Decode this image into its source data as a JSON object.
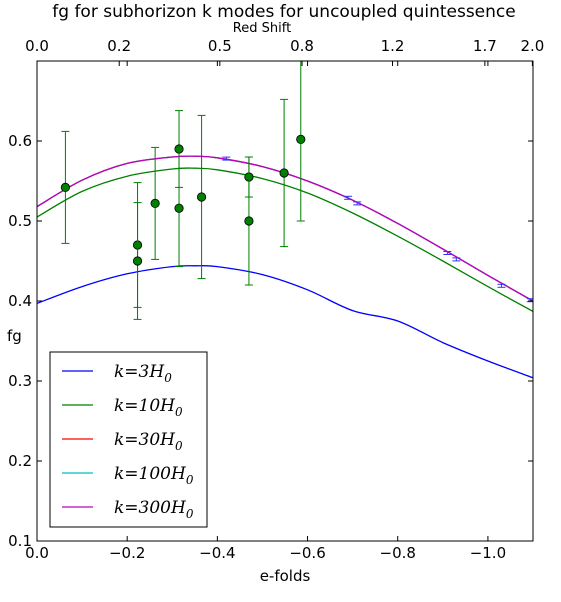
{
  "chart_data": {
    "type": "line",
    "title": "fg for subhorizon k modes for uncoupled quintessence",
    "xlabel": "e-folds",
    "ylabel": "fg",
    "x2label": "Red Shift",
    "xlim": [
      0.0,
      -1.1
    ],
    "ylim": [
      0.1,
      0.7
    ],
    "x_ticks": [
      0.0,
      -0.2,
      -0.4,
      -0.6,
      -0.8,
      -1.0
    ],
    "x_tick_labels": [
      "0.0",
      "−0.2",
      "−0.4",
      "−0.6",
      "−0.8",
      "−1.0"
    ],
    "y_ticks": [
      0.1,
      0.2,
      0.3,
      0.4,
      0.5,
      0.6
    ],
    "y_tick_labels": [
      "0.1",
      "0.2",
      "0.3",
      "0.4",
      "0.5",
      "0.6"
    ],
    "top_ticks": [
      {
        "z": 0.0,
        "label": "0.0"
      },
      {
        "z": 0.2,
        "label": "0.2"
      },
      {
        "z": 0.5,
        "label": "0.5"
      },
      {
        "z": 0.8,
        "label": "0.8"
      },
      {
        "z": 1.2,
        "label": "1.2"
      },
      {
        "z": 1.7,
        "label": "1.7"
      },
      {
        "z": 2.0,
        "label": "2.0"
      }
    ],
    "grid": false,
    "legend_position": "lower-left",
    "series": [
      {
        "name": "k=3H0",
        "label_base": "k=3H",
        "label_sub": "0",
        "color": "#0000ff",
        "x": [
          0,
          -0.1,
          -0.2,
          -0.3,
          -0.35,
          -0.4,
          -0.5,
          -0.6,
          -0.7,
          -0.8,
          -0.9,
          -1.0,
          -1.1
        ],
        "y": [
          0.397,
          0.418,
          0.434,
          0.443,
          0.444,
          0.443,
          0.433,
          0.414,
          0.388,
          0.375,
          0.348,
          0.325,
          0.304
        ]
      },
      {
        "name": "k=10H0",
        "label_base": "k=10H",
        "label_sub": "0",
        "color": "#008000",
        "x": [
          0,
          -0.1,
          -0.2,
          -0.3,
          -0.35,
          -0.4,
          -0.5,
          -0.6,
          -0.7,
          -0.8,
          -0.9,
          -1.0,
          -1.1
        ],
        "y": [
          0.505,
          0.537,
          0.556,
          0.565,
          0.566,
          0.564,
          0.553,
          0.535,
          0.51,
          0.481,
          0.45,
          0.418,
          0.387
        ]
      },
      {
        "name": "k=30H0",
        "label_base": "k=30H",
        "label_sub": "0",
        "color": "#ff0000",
        "x": [
          0,
          -0.1,
          -0.2,
          -0.3,
          -0.35,
          -0.4,
          -0.5,
          -0.6,
          -0.7,
          -0.8,
          -0.9,
          -1.0,
          -1.1
        ],
        "y": [
          0.518,
          0.551,
          0.572,
          0.58,
          0.581,
          0.579,
          0.568,
          0.55,
          0.526,
          0.497,
          0.465,
          0.432,
          0.4
        ]
      },
      {
        "name": "k=100H0",
        "label_base": "k=100H",
        "label_sub": "0",
        "color": "#00bfbf",
        "x": [
          0,
          -0.1,
          -0.2,
          -0.3,
          -0.35,
          -0.4,
          -0.5,
          -0.6,
          -0.7,
          -0.8,
          -0.9,
          -1.0,
          -1.1
        ],
        "y": [
          0.518,
          0.551,
          0.572,
          0.58,
          0.581,
          0.579,
          0.568,
          0.55,
          0.526,
          0.497,
          0.465,
          0.432,
          0.4
        ]
      },
      {
        "name": "k=300H0",
        "label_base": "k=300H",
        "label_sub": "0",
        "color": "#bf00bf",
        "x": [
          0,
          -0.1,
          -0.2,
          -0.3,
          -0.35,
          -0.4,
          -0.5,
          -0.6,
          -0.7,
          -0.8,
          -0.9,
          -1.0,
          -1.1
        ],
        "y": [
          0.518,
          0.551,
          0.572,
          0.58,
          0.581,
          0.579,
          0.568,
          0.55,
          0.526,
          0.497,
          0.465,
          0.432,
          0.4
        ]
      }
    ],
    "observations": {
      "color": "#007f00",
      "points": [
        {
          "x": -0.063,
          "y": 0.542,
          "err": 0.07
        },
        {
          "x": -0.223,
          "y": 0.47,
          "err": 0.078
        },
        {
          "x": -0.223,
          "y": 0.45,
          "err": 0.073
        },
        {
          "x": -0.262,
          "y": 0.522,
          "err": 0.07
        },
        {
          "x": -0.315,
          "y": 0.59,
          "err": 0.048
        },
        {
          "x": -0.315,
          "y": 0.516,
          "err": 0.073
        },
        {
          "x": -0.365,
          "y": 0.53,
          "err": 0.102
        },
        {
          "x": -0.47,
          "y": 0.555,
          "err": 0.025
        },
        {
          "x": -0.47,
          "y": 0.5,
          "err": 0.08
        },
        {
          "x": -0.548,
          "y": 0.56,
          "err": 0.092
        },
        {
          "x": -0.585,
          "y": 0.602,
          "err": 0.102
        }
      ]
    },
    "forecast_errorbars": {
      "color": "#3333ff",
      "points": [
        {
          "x": -0.42,
          "y": 0.578
        },
        {
          "x": -0.69,
          "y": 0.529
        },
        {
          "x": -0.71,
          "y": 0.522
        },
        {
          "x": -0.91,
          "y": 0.46
        },
        {
          "x": -0.93,
          "y": 0.452
        },
        {
          "x": -1.03,
          "y": 0.419
        },
        {
          "x": -1.095,
          "y": 0.401
        }
      ]
    }
  }
}
